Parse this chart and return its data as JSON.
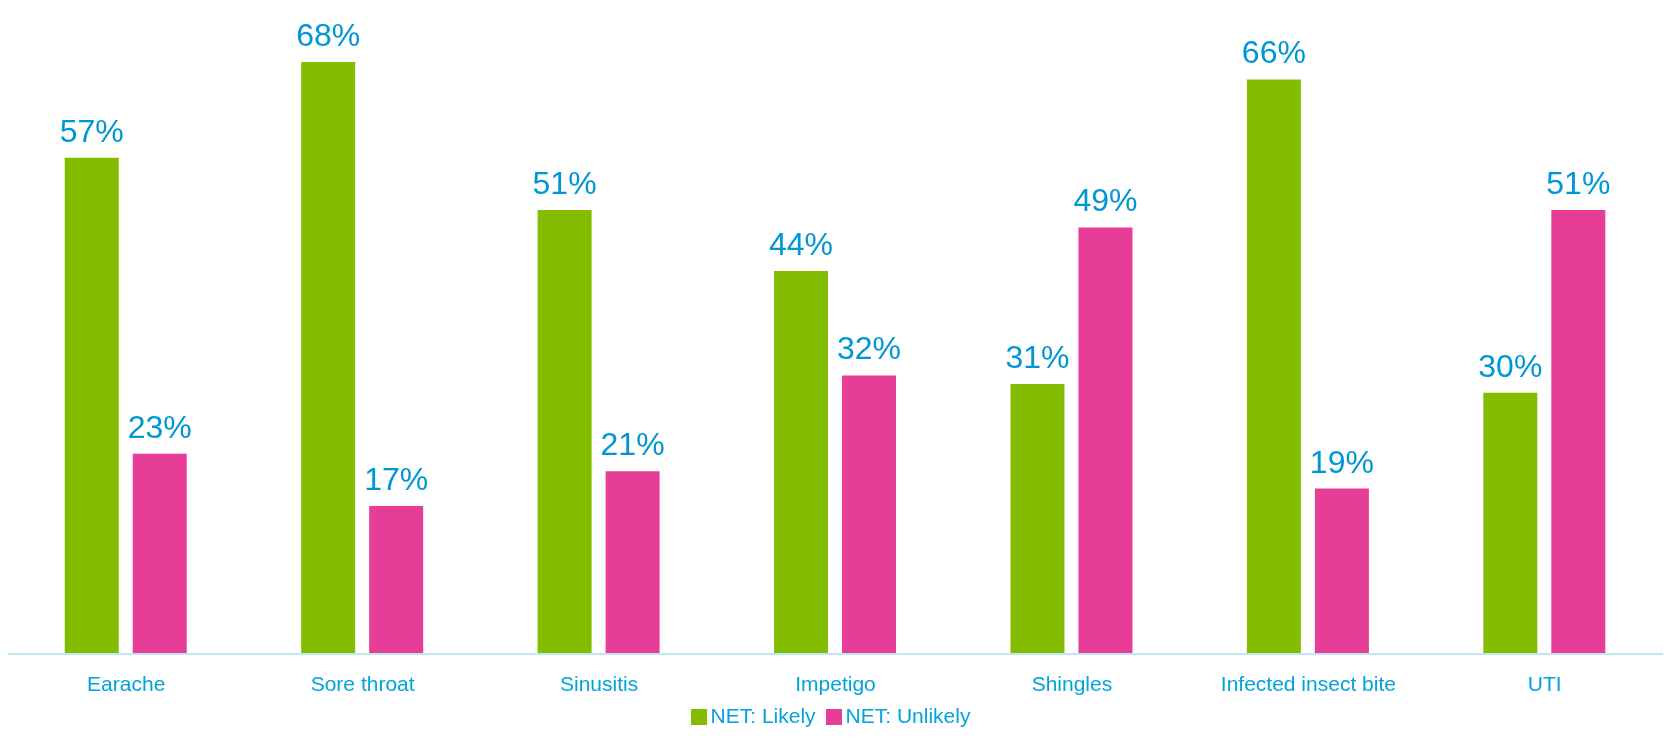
{
  "chart_data": {
    "type": "bar",
    "categories": [
      "Earache",
      "Sore throat",
      "Sinusitis",
      "Impetigo",
      "Shingles",
      "Infected insect bite",
      "UTI"
    ],
    "series": [
      {
        "name": "NET: Likely",
        "color": "#84bd00",
        "values": [
          57,
          68,
          51,
          44,
          31,
          66,
          30
        ],
        "value_labels": [
          "57%",
          "68%",
          "51%",
          "44%",
          "31%",
          "66%",
          "30%"
        ]
      },
      {
        "name": "NET: Unlikely",
        "color": "#e63d96",
        "values": [
          23,
          17,
          21,
          32,
          49,
          19,
          51
        ],
        "value_labels": [
          "23%",
          "17%",
          "21%",
          "32%",
          "49%",
          "19%",
          "51%"
        ]
      }
    ],
    "grid": false,
    "legend": "bottom"
  }
}
